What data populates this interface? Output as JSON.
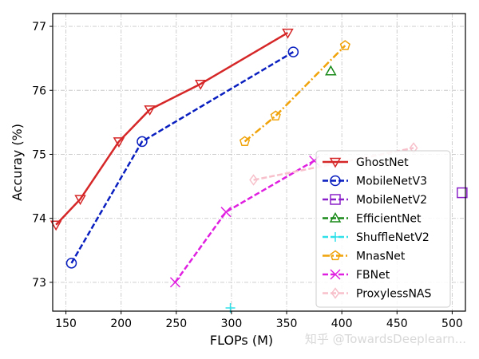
{
  "chart_data": {
    "type": "line",
    "title": "",
    "xlabel": "FLOPs (M)",
    "ylabel": "Accuray (%)",
    "xlim": [
      138,
      512
    ],
    "ylim": [
      72.55,
      77.2
    ],
    "xticks": [
      150,
      200,
      250,
      300,
      350,
      400,
      450,
      500
    ],
    "yticks": [
      73,
      74,
      75,
      76,
      77
    ],
    "grid": true,
    "legend_position": "lower-right",
    "series": [
      {
        "name": "GhostNet",
        "color": "#d62728",
        "dash": "solid",
        "marker": "triangle-down",
        "x": [
          141,
          163,
          198,
          226,
          272,
          351
        ],
        "y": [
          73.9,
          74.3,
          75.2,
          75.7,
          76.1,
          76.9
        ]
      },
      {
        "name": "MobileNetV3",
        "color": "#0a1fbf",
        "dash": "dashed",
        "marker": "circle",
        "x": [
          155,
          219,
          356
        ],
        "y": [
          73.3,
          75.2,
          76.6
        ]
      },
      {
        "name": "MobileNetV2",
        "color": "#8b22c9",
        "dash": "dashed",
        "marker": "square",
        "x": [
          509
        ],
        "y": [
          74.4
        ]
      },
      {
        "name": "EfficientNet",
        "color": "#1a8a1a",
        "dash": "dashed",
        "marker": "triangle-up",
        "x": [
          390
        ],
        "y": [
          76.3
        ]
      },
      {
        "name": "ShuffleNetV2",
        "color": "#2fe0e8",
        "dash": "dashed",
        "marker": "plus",
        "x": [
          299
        ],
        "y": [
          72.6
        ]
      },
      {
        "name": "MnasNet",
        "color": "#f0a30a",
        "dash": "dashdot",
        "marker": "pentagon",
        "x": [
          312,
          340,
          403
        ],
        "y": [
          75.2,
          75.6,
          76.7
        ]
      },
      {
        "name": "FBNet",
        "color": "#e020e0",
        "dash": "dashed",
        "marker": "x",
        "x": [
          249,
          295,
          375
        ],
        "y": [
          73.0,
          74.1,
          74.9
        ]
      },
      {
        "name": "ProxylessNAS",
        "color": "#f7c0cb",
        "dash": "dashed",
        "marker": "diamond",
        "x": [
          320,
          465
        ],
        "y": [
          74.6,
          75.1
        ]
      }
    ],
    "watermark": "知乎 @TowardsDeeplearn..."
  }
}
